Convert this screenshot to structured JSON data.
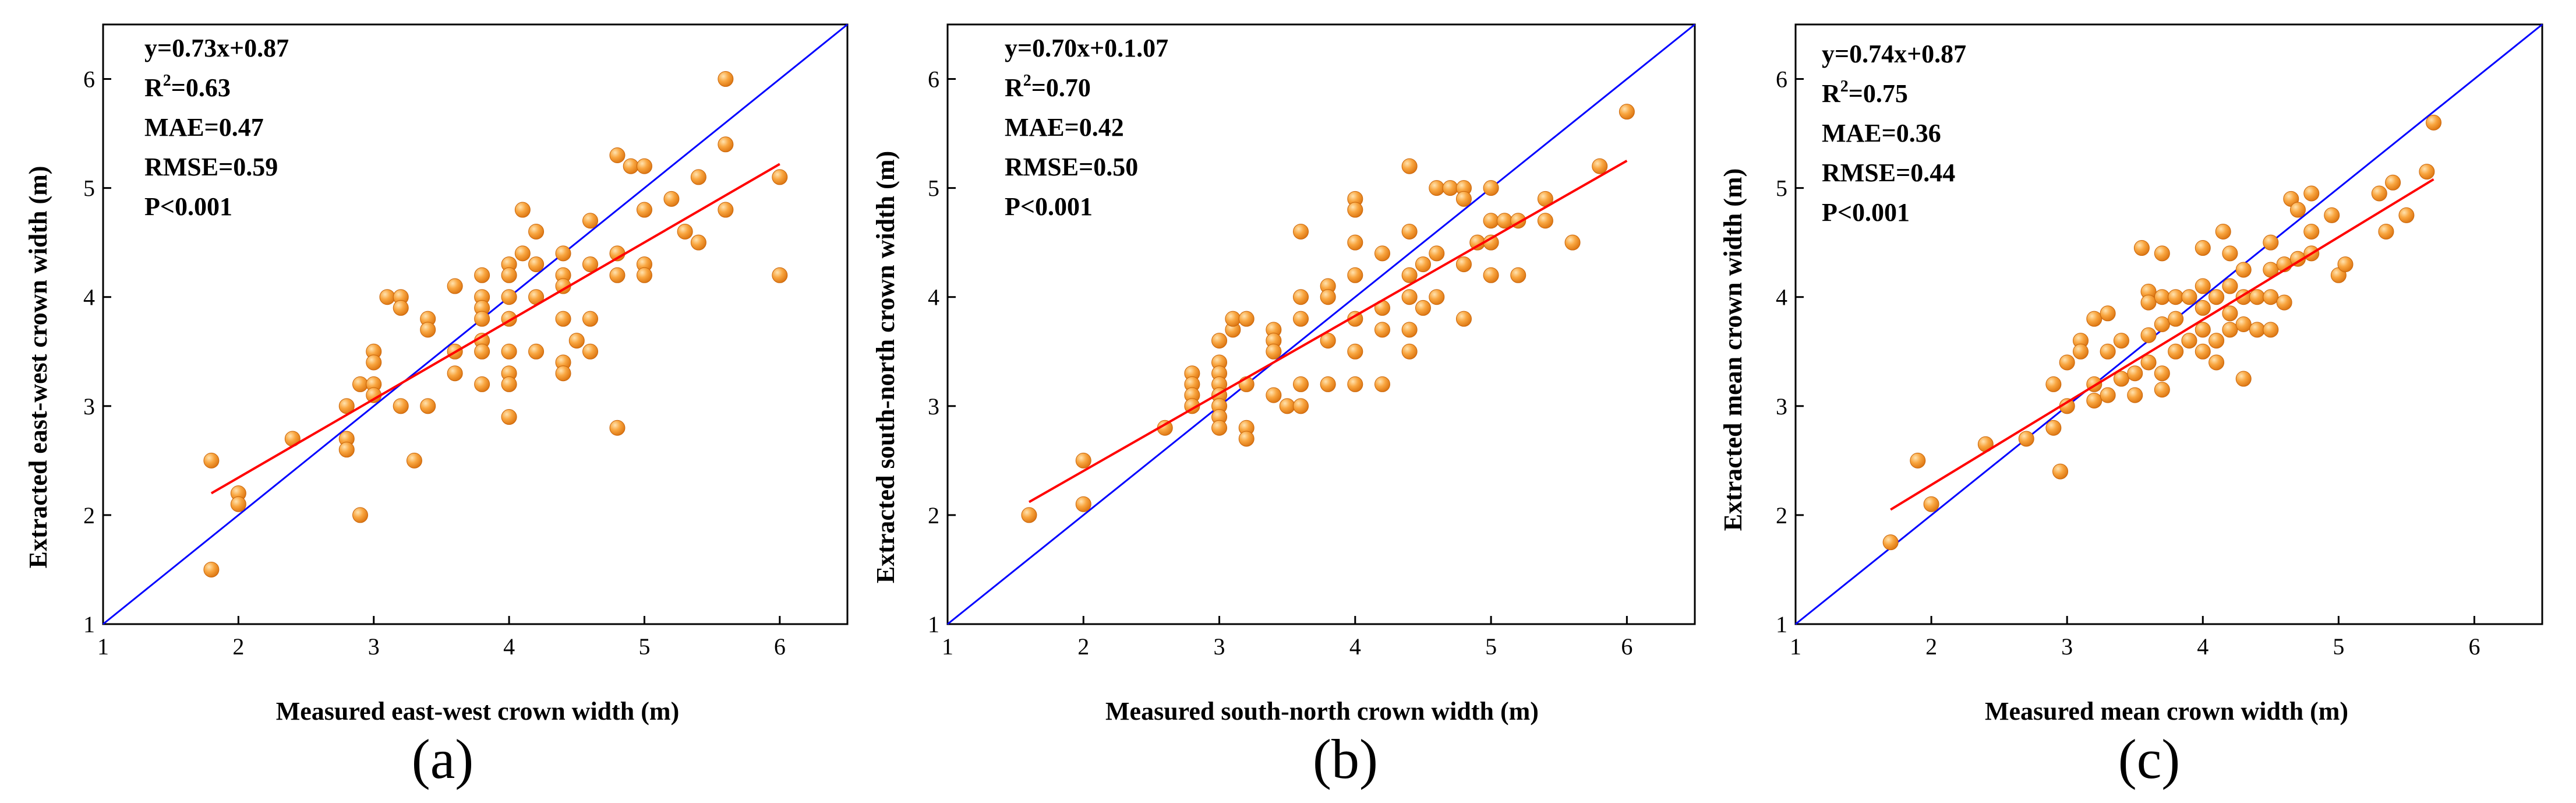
{
  "chart_data": [
    {
      "type": "scatter",
      "panel_label": "(a)",
      "xlabel": "Measured east-west crown width (m)",
      "ylabel": "Extracted east-west crown width (m)",
      "xlim": [
        1,
        6.5
      ],
      "ylim": [
        1,
        6.5
      ],
      "xticks": [
        "1",
        "2",
        "3",
        "4",
        "5",
        "6"
      ],
      "yticks": [
        "1",
        "2",
        "3",
        "4",
        "5",
        "6"
      ],
      "stats": {
        "equation": "y=0.73x+0.87",
        "r2_prefix": "R",
        "r2_sup": "2",
        "r2_value": "=0.63",
        "mae": "MAE=0.47",
        "rmse": "RMSE=0.59",
        "p": "P<0.001"
      },
      "fit_line": {
        "color": "#ff0000",
        "x": [
          1.8,
          6.0
        ],
        "y": [
          2.2,
          5.22
        ]
      },
      "identity_line": {
        "color": "#0000ff",
        "x": [
          1,
          6.5
        ],
        "y": [
          1,
          6.5
        ]
      },
      "point_color": "#f7931e",
      "points": [
        [
          1.8,
          2.5
        ],
        [
          1.8,
          1.5
        ],
        [
          2.0,
          2.2
        ],
        [
          2.0,
          2.1
        ],
        [
          2.4,
          2.7
        ],
        [
          2.8,
          2.7
        ],
        [
          2.8,
          2.6
        ],
        [
          2.8,
          3.0
        ],
        [
          2.9,
          2.0
        ],
        [
          2.9,
          3.2
        ],
        [
          3.0,
          3.5
        ],
        [
          3.0,
          3.4
        ],
        [
          3.0,
          3.2
        ],
        [
          3.0,
          3.1
        ],
        [
          3.1,
          4.0
        ],
        [
          3.2,
          4.0
        ],
        [
          3.2,
          3.9
        ],
        [
          3.2,
          3.0
        ],
        [
          3.3,
          2.5
        ],
        [
          3.4,
          3.8
        ],
        [
          3.4,
          3.7
        ],
        [
          3.4,
          3.0
        ],
        [
          3.6,
          4.1
        ],
        [
          3.6,
          3.5
        ],
        [
          3.6,
          3.3
        ],
        [
          3.8,
          4.2
        ],
        [
          3.8,
          4.0
        ],
        [
          3.8,
          3.9
        ],
        [
          3.8,
          3.8
        ],
        [
          3.8,
          3.6
        ],
        [
          3.8,
          3.5
        ],
        [
          3.8,
          3.2
        ],
        [
          4.0,
          4.3
        ],
        [
          4.0,
          4.2
        ],
        [
          4.0,
          4.0
        ],
        [
          4.0,
          3.8
        ],
        [
          4.0,
          3.5
        ],
        [
          4.0,
          3.3
        ],
        [
          4.0,
          3.2
        ],
        [
          4.0,
          2.9
        ],
        [
          4.1,
          4.8
        ],
        [
          4.1,
          4.4
        ],
        [
          4.2,
          4.6
        ],
        [
          4.2,
          4.3
        ],
        [
          4.2,
          4.0
        ],
        [
          4.2,
          3.5
        ],
        [
          4.4,
          4.4
        ],
        [
          4.4,
          4.2
        ],
        [
          4.4,
          4.1
        ],
        [
          4.4,
          3.8
        ],
        [
          4.4,
          3.4
        ],
        [
          4.4,
          3.3
        ],
        [
          4.5,
          3.6
        ],
        [
          4.6,
          4.7
        ],
        [
          4.6,
          4.3
        ],
        [
          4.6,
          3.8
        ],
        [
          4.6,
          3.5
        ],
        [
          4.8,
          5.3
        ],
        [
          4.8,
          4.4
        ],
        [
          4.8,
          4.2
        ],
        [
          4.8,
          2.8
        ],
        [
          4.9,
          5.2
        ],
        [
          5.0,
          5.2
        ],
        [
          5.0,
          4.8
        ],
        [
          5.0,
          4.3
        ],
        [
          5.0,
          4.2
        ],
        [
          5.2,
          4.9
        ],
        [
          5.3,
          4.6
        ],
        [
          5.4,
          5.1
        ],
        [
          5.4,
          4.5
        ],
        [
          5.6,
          6.0
        ],
        [
          5.6,
          5.4
        ],
        [
          5.6,
          4.8
        ],
        [
          6.0,
          5.1
        ],
        [
          6.0,
          4.2
        ]
      ]
    },
    {
      "type": "scatter",
      "panel_label": "(b)",
      "xlabel": "Measured south-north crown width (m)",
      "ylabel": "Extracted  south-north crown width (m)",
      "xlim": [
        1,
        6.5
      ],
      "ylim": [
        1,
        6.5
      ],
      "xticks": [
        "1",
        "2",
        "3",
        "4",
        "5",
        "6"
      ],
      "yticks": [
        "1",
        "2",
        "3",
        "4",
        "5",
        "6"
      ],
      "stats": {
        "equation": "y=0.70x+0.1.07",
        "r2_prefix": "R",
        "r2_sup": "2",
        "r2_value": "=0.70",
        "mae": "MAE=0.42",
        "rmse": "RMSE=0.50",
        "p": "P<0.001"
      },
      "fit_line": {
        "color": "#ff0000",
        "x": [
          1.6,
          6.0
        ],
        "y": [
          2.12,
          5.25
        ]
      },
      "identity_line": {
        "color": "#0000ff",
        "x": [
          1,
          6.5
        ],
        "y": [
          1,
          6.5
        ]
      },
      "point_color": "#f7931e",
      "points": [
        [
          1.6,
          2.0
        ],
        [
          2.0,
          2.5
        ],
        [
          2.0,
          2.1
        ],
        [
          2.6,
          2.8
        ],
        [
          2.8,
          3.3
        ],
        [
          2.8,
          3.2
        ],
        [
          2.8,
          3.1
        ],
        [
          2.8,
          3.0
        ],
        [
          3.0,
          3.6
        ],
        [
          3.0,
          3.4
        ],
        [
          3.0,
          3.3
        ],
        [
          3.0,
          3.2
        ],
        [
          3.0,
          3.1
        ],
        [
          3.0,
          3.0
        ],
        [
          3.0,
          2.9
        ],
        [
          3.0,
          2.8
        ],
        [
          3.1,
          3.7
        ],
        [
          3.1,
          3.8
        ],
        [
          3.2,
          3.8
        ],
        [
          3.2,
          3.2
        ],
        [
          3.2,
          2.8
        ],
        [
          3.2,
          2.7
        ],
        [
          3.4,
          3.7
        ],
        [
          3.4,
          3.6
        ],
        [
          3.4,
          3.5
        ],
        [
          3.4,
          3.1
        ],
        [
          3.5,
          3.0
        ],
        [
          3.6,
          4.6
        ],
        [
          3.6,
          4.0
        ],
        [
          3.6,
          3.8
        ],
        [
          3.6,
          3.2
        ],
        [
          3.6,
          3.0
        ],
        [
          3.8,
          4.1
        ],
        [
          3.8,
          4.0
        ],
        [
          3.8,
          3.6
        ],
        [
          3.8,
          3.2
        ],
        [
          4.0,
          4.9
        ],
        [
          4.0,
          4.8
        ],
        [
          4.0,
          4.5
        ],
        [
          4.0,
          4.2
        ],
        [
          4.0,
          3.8
        ],
        [
          4.0,
          3.5
        ],
        [
          4.0,
          3.2
        ],
        [
          4.2,
          4.4
        ],
        [
          4.2,
          3.9
        ],
        [
          4.2,
          3.7
        ],
        [
          4.2,
          3.2
        ],
        [
          4.4,
          5.2
        ],
        [
          4.4,
          4.6
        ],
        [
          4.4,
          4.2
        ],
        [
          4.4,
          4.0
        ],
        [
          4.4,
          3.7
        ],
        [
          4.4,
          3.5
        ],
        [
          4.5,
          4.3
        ],
        [
          4.5,
          3.9
        ],
        [
          4.6,
          5.0
        ],
        [
          4.6,
          4.4
        ],
        [
          4.6,
          4.0
        ],
        [
          4.7,
          5.0
        ],
        [
          4.8,
          5.0
        ],
        [
          4.8,
          4.9
        ],
        [
          4.8,
          4.3
        ],
        [
          4.8,
          3.8
        ],
        [
          4.9,
          4.5
        ],
        [
          5.0,
          5.0
        ],
        [
          5.0,
          4.7
        ],
        [
          5.0,
          4.5
        ],
        [
          5.0,
          4.2
        ],
        [
          5.1,
          4.7
        ],
        [
          5.2,
          4.7
        ],
        [
          5.2,
          4.2
        ],
        [
          5.4,
          4.9
        ],
        [
          5.4,
          4.7
        ],
        [
          5.6,
          4.5
        ],
        [
          5.8,
          5.2
        ],
        [
          6.0,
          5.7
        ]
      ]
    },
    {
      "type": "scatter",
      "panel_label": "(c)",
      "xlabel": "Measured mean crown width (m)",
      "ylabel": "Extracted mean crown width (m)",
      "xlim": [
        1,
        6.5
      ],
      "ylim": [
        1,
        6.5
      ],
      "xticks": [
        "1",
        "2",
        "3",
        "4",
        "5",
        "6"
      ],
      "yticks": [
        "1",
        "2",
        "3",
        "4",
        "5",
        "6"
      ],
      "stats": {
        "equation": "y=0.74x+0.87",
        "r2_prefix": "R",
        "r2_sup": "2",
        "r2_value": "=0.75",
        "mae": "MAE=0.36",
        "rmse": "RMSE=0.44",
        "p": "P<0.001"
      },
      "fit_line": {
        "color": "#ff0000",
        "x": [
          1.7,
          5.7
        ],
        "y": [
          2.05,
          5.08
        ]
      },
      "identity_line": {
        "color": "#0000ff",
        "x": [
          1,
          6.5
        ],
        "y": [
          1,
          6.5
        ]
      },
      "point_color": "#f7931e",
      "points": [
        [
          1.7,
          1.75
        ],
        [
          1.9,
          2.5
        ],
        [
          2.0,
          2.1
        ],
        [
          2.4,
          2.65
        ],
        [
          2.7,
          2.7
        ],
        [
          2.9,
          2.8
        ],
        [
          2.9,
          3.2
        ],
        [
          2.95,
          2.4
        ],
        [
          3.0,
          3.4
        ],
        [
          3.0,
          3.0
        ],
        [
          3.1,
          3.6
        ],
        [
          3.1,
          3.5
        ],
        [
          3.2,
          3.8
        ],
        [
          3.2,
          3.2
        ],
        [
          3.2,
          3.05
        ],
        [
          3.3,
          3.85
        ],
        [
          3.3,
          3.5
        ],
        [
          3.3,
          3.1
        ],
        [
          3.4,
          3.6
        ],
        [
          3.4,
          3.25
        ],
        [
          3.5,
          3.3
        ],
        [
          3.5,
          3.1
        ],
        [
          3.55,
          4.45
        ],
        [
          3.6,
          4.05
        ],
        [
          3.6,
          3.95
        ],
        [
          3.6,
          3.65
        ],
        [
          3.6,
          3.4
        ],
        [
          3.7,
          4.4
        ],
        [
          3.7,
          4.0
        ],
        [
          3.7,
          3.75
        ],
        [
          3.7,
          3.3
        ],
        [
          3.7,
          3.15
        ],
        [
          3.8,
          4.0
        ],
        [
          3.8,
          3.8
        ],
        [
          3.8,
          3.5
        ],
        [
          3.9,
          4.0
        ],
        [
          3.9,
          3.6
        ],
        [
          4.0,
          4.45
        ],
        [
          4.0,
          4.1
        ],
        [
          4.0,
          3.9
        ],
        [
          4.0,
          3.7
        ],
        [
          4.0,
          3.5
        ],
        [
          4.1,
          4.0
        ],
        [
          4.1,
          3.6
        ],
        [
          4.1,
          3.4
        ],
        [
          4.15,
          4.6
        ],
        [
          4.2,
          4.4
        ],
        [
          4.2,
          4.1
        ],
        [
          4.2,
          3.85
        ],
        [
          4.2,
          3.7
        ],
        [
          4.3,
          4.25
        ],
        [
          4.3,
          4.0
        ],
        [
          4.3,
          3.75
        ],
        [
          4.3,
          3.25
        ],
        [
          4.4,
          4.0
        ],
        [
          4.4,
          3.7
        ],
        [
          4.5,
          4.5
        ],
        [
          4.5,
          4.25
        ],
        [
          4.5,
          4.0
        ],
        [
          4.5,
          3.7
        ],
        [
          4.6,
          4.3
        ],
        [
          4.6,
          3.95
        ],
        [
          4.65,
          4.9
        ],
        [
          4.7,
          4.8
        ],
        [
          4.7,
          4.35
        ],
        [
          4.8,
          4.95
        ],
        [
          4.8,
          4.6
        ],
        [
          4.8,
          4.4
        ],
        [
          4.95,
          4.75
        ],
        [
          5.0,
          4.2
        ],
        [
          5.05,
          4.3
        ],
        [
          5.3,
          4.95
        ],
        [
          5.35,
          4.6
        ],
        [
          5.4,
          5.05
        ],
        [
          5.5,
          4.75
        ],
        [
          5.65,
          5.15
        ],
        [
          5.7,
          5.6
        ]
      ]
    }
  ]
}
